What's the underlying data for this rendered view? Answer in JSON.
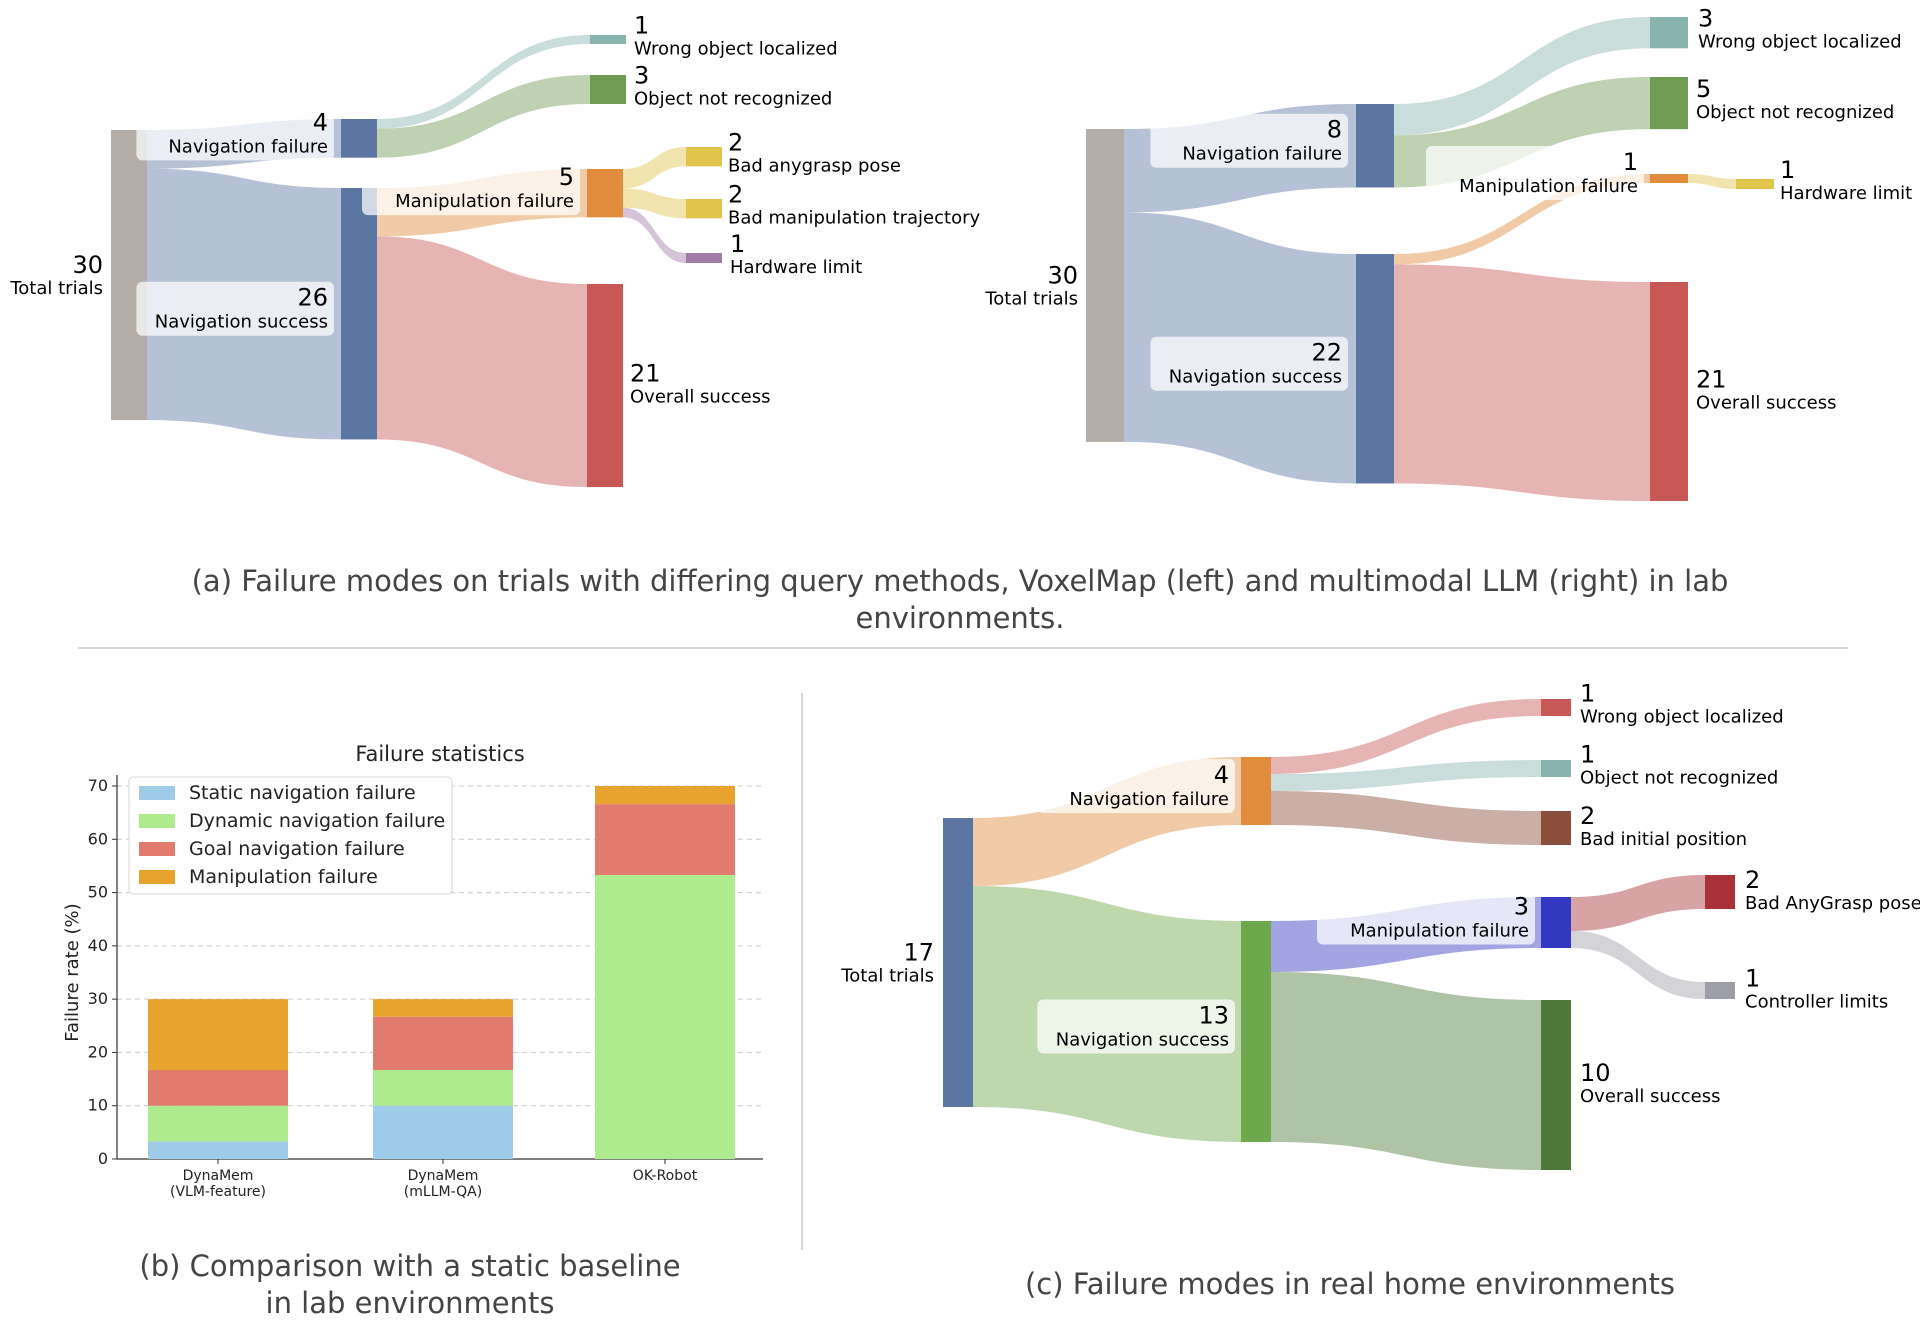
{
  "captions": {
    "a": "(a) Failure modes on trials with differing query methods, VoxelMap (left) and multimodal LLM (right) in lab environments.",
    "b_line1": "(b) Comparison with a static baseline",
    "b_line2": "in lab environments",
    "c": "(c) Failure modes in real home environments"
  },
  "chart_data": [
    {
      "id": "sankey-voxelmap",
      "type": "sankey",
      "nodes": [
        {
          "id": "total",
          "value": 30,
          "label": "Total trials",
          "color": "#b3aca7"
        },
        {
          "id": "navfail",
          "value": 4,
          "label": "Navigation failure",
          "color": "#5b76a3"
        },
        {
          "id": "navsucc",
          "value": 26,
          "label": "Navigation success",
          "color": "#5b76a3"
        },
        {
          "id": "wrongobj",
          "value": 1,
          "label": "Wrong object localized",
          "color": "#88b3ae"
        },
        {
          "id": "notrecog",
          "value": 3,
          "label": "Object not recognized",
          "color": "#6e9c52"
        },
        {
          "id": "manipfail",
          "value": 5,
          "label": "Manipulation failure",
          "color": "#e08c3c"
        },
        {
          "id": "badpose",
          "value": 2,
          "label": "Bad anygrasp pose",
          "color": "#e2c44d"
        },
        {
          "id": "badtraj",
          "value": 2,
          "label": "Bad manipulation trajectory",
          "color": "#e2c44d"
        },
        {
          "id": "hwlimit",
          "value": 1,
          "label": "Hardware limit",
          "color": "#a27ba8"
        },
        {
          "id": "success",
          "value": 21,
          "label": "Overall success",
          "color": "#c85856"
        }
      ],
      "links": [
        {
          "source": "total",
          "target": "navfail",
          "value": 4
        },
        {
          "source": "total",
          "target": "navsucc",
          "value": 26
        },
        {
          "source": "navfail",
          "target": "wrongobj",
          "value": 1
        },
        {
          "source": "navfail",
          "target": "notrecog",
          "value": 3
        },
        {
          "source": "navsucc",
          "target": "manipfail",
          "value": 5
        },
        {
          "source": "navsucc",
          "target": "success",
          "value": 21
        },
        {
          "source": "manipfail",
          "target": "badpose",
          "value": 2
        },
        {
          "source": "manipfail",
          "target": "badtraj",
          "value": 2
        },
        {
          "source": "manipfail",
          "target": "hwlimit",
          "value": 1
        }
      ]
    },
    {
      "id": "sankey-mllm",
      "type": "sankey",
      "nodes": [
        {
          "id": "total",
          "value": 30,
          "label": "Total trials",
          "color": "#b3aca7"
        },
        {
          "id": "navfail",
          "value": 8,
          "label": "Navigation failure",
          "color": "#5b76a3"
        },
        {
          "id": "navsucc",
          "value": 22,
          "label": "Navigation success",
          "color": "#5b76a3"
        },
        {
          "id": "wrongobj",
          "value": 3,
          "label": "Wrong object localized",
          "color": "#88b3ae"
        },
        {
          "id": "notrecog",
          "value": 5,
          "label": "Object not recognized",
          "color": "#6e9c52"
        },
        {
          "id": "manipfail",
          "value": 1,
          "label": "Manipulation failure",
          "color": "#e08c3c"
        },
        {
          "id": "hwlimit",
          "value": 1,
          "label": "Hardware limit",
          "color": "#e2c44d"
        },
        {
          "id": "success",
          "value": 21,
          "label": "Overall success",
          "color": "#c85856"
        }
      ],
      "links": [
        {
          "source": "total",
          "target": "navfail",
          "value": 8
        },
        {
          "source": "total",
          "target": "navsucc",
          "value": 22
        },
        {
          "source": "navfail",
          "target": "wrongobj",
          "value": 3
        },
        {
          "source": "navfail",
          "target": "notrecog",
          "value": 5
        },
        {
          "source": "navsucc",
          "target": "manipfail",
          "value": 1
        },
        {
          "source": "navsucc",
          "target": "success",
          "value": 21
        },
        {
          "source": "manipfail",
          "target": "hwlimit",
          "value": 1
        }
      ]
    },
    {
      "id": "bar-failure-statistics",
      "type": "bar",
      "stacked": true,
      "title": "Failure statistics",
      "ylabel": "Failure rate (%)",
      "ylim": [
        0,
        72
      ],
      "yticks": [
        0,
        10,
        20,
        30,
        40,
        50,
        60,
        70
      ],
      "grid": true,
      "legend": "top-left",
      "categories": [
        "DynaMem\n(VLM-feature)",
        "DynaMem\n(mLLM-QA)",
        "OK-Robot"
      ],
      "series": [
        {
          "name": "Static navigation failure",
          "color": "#9dcbe8",
          "values": [
            3.3,
            10,
            0
          ]
        },
        {
          "name": "Dynamic navigation failure",
          "color": "#aeea8e",
          "values": [
            6.7,
            6.7,
            53.3
          ]
        },
        {
          "name": "Goal navigation failure",
          "color": "#e07b6d",
          "values": [
            6.7,
            10,
            13.3
          ]
        },
        {
          "name": "Manipulation failure",
          "color": "#e8a22e",
          "values": [
            13.3,
            3.3,
            3.4
          ]
        }
      ]
    },
    {
      "id": "sankey-home",
      "type": "sankey",
      "nodes": [
        {
          "id": "total",
          "value": 17,
          "label": "Total trials",
          "color": "#5b76a3"
        },
        {
          "id": "navfail",
          "value": 4,
          "label": "Navigation failure",
          "color": "#e08c3c"
        },
        {
          "id": "navsucc",
          "value": 13,
          "label": "Navigation success",
          "color": "#6ea84c"
        },
        {
          "id": "wrongobj",
          "value": 1,
          "label": "Wrong object localized",
          "color": "#c85856"
        },
        {
          "id": "notrecog",
          "value": 1,
          "label": "Object not recognized",
          "color": "#88b3ae"
        },
        {
          "id": "badinit",
          "value": 2,
          "label": "Bad initial position",
          "color": "#8b4e3a"
        },
        {
          "id": "manipfail",
          "value": 3,
          "label": "Manipulation failure",
          "color": "#3238c0"
        },
        {
          "id": "success",
          "value": 10,
          "label": "Overall success",
          "color": "#4d7a3b"
        },
        {
          "id": "badanygrasp",
          "value": 2,
          "label": "Bad AnyGrasp pose",
          "color": "#a83236"
        },
        {
          "id": "controller",
          "value": 1,
          "label": "Controller limits",
          "color": "#9e9ea8"
        }
      ],
      "links": [
        {
          "source": "total",
          "target": "navfail",
          "value": 4
        },
        {
          "source": "total",
          "target": "navsucc",
          "value": 13
        },
        {
          "source": "navfail",
          "target": "wrongobj",
          "value": 1
        },
        {
          "source": "navfail",
          "target": "notrecog",
          "value": 1
        },
        {
          "source": "navfail",
          "target": "badinit",
          "value": 2
        },
        {
          "source": "navsucc",
          "target": "manipfail",
          "value": 3
        },
        {
          "source": "navsucc",
          "target": "success",
          "value": 10
        },
        {
          "source": "manipfail",
          "target": "badanygrasp",
          "value": 2
        },
        {
          "source": "manipfail",
          "target": "controller",
          "value": 1
        }
      ]
    }
  ]
}
